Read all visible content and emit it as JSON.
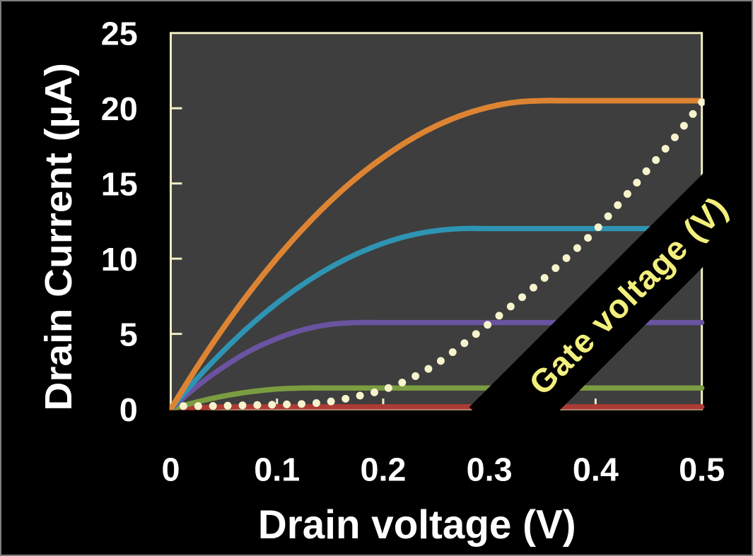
{
  "chart_data": {
    "type": "line",
    "title": "",
    "xlabel": "Drain voltage (V)",
    "ylabel": "Drain Current (µA)",
    "xlim": [
      0,
      0.5
    ],
    "ylim": [
      0,
      25
    ],
    "x_tick_values": [
      0,
      0.1,
      0.2,
      0.3,
      0.4,
      0.5
    ],
    "x_tick_labels": [
      "0",
      "0.1",
      "0.2",
      "0.3",
      "0.4",
      "0.5"
    ],
    "y_tick_values": [
      0,
      5,
      10,
      15,
      20,
      25
    ],
    "y_tick_labels": [
      "0",
      "5",
      "10",
      "15",
      "20",
      "25"
    ],
    "grid": false,
    "legend": "none",
    "colors": {
      "page_bg": "#000000",
      "frame_border": "#7d7d7d",
      "plot_bg": "#3e3e3e",
      "axis": "#f0edc5",
      "tick_labels": "#ffffff",
      "axis_titles": "#ffffff"
    },
    "x": [
      0,
      0.025,
      0.05,
      0.075,
      0.1,
      0.125,
      0.15,
      0.175,
      0.2,
      0.225,
      0.25,
      0.275,
      0.3,
      0.325,
      0.35,
      0.375,
      0.4,
      0.425,
      0.45,
      0.475,
      0.5
    ],
    "series": [
      {
        "name": "output-curve-red",
        "style": "solid",
        "color": "#ae3a36",
        "line_width": 7.5,
        "values": [
          0,
          0.09,
          0.14,
          0.15,
          0.15,
          0.15,
          0.15,
          0.15,
          0.15,
          0.15,
          0.15,
          0.15,
          0.15,
          0.15,
          0.15,
          0.15,
          0.15,
          0.15,
          0.15,
          0.15,
          0.15
        ]
      },
      {
        "name": "output-curve-green",
        "style": "solid",
        "color": "#7b9d41",
        "line_width": 7.5,
        "values": [
          0,
          0.48,
          0.87,
          1.15,
          1.33,
          1.4,
          1.4,
          1.4,
          1.4,
          1.4,
          1.4,
          1.4,
          1.4,
          1.4,
          1.4,
          1.4,
          1.4,
          1.4,
          1.4,
          1.4,
          1.4
        ]
      },
      {
        "name": "output-curve-purple",
        "style": "solid",
        "color": "#6a53a1",
        "line_width": 7.5,
        "values": [
          0,
          1.53,
          2.82,
          3.89,
          4.69,
          5.28,
          5.63,
          5.75,
          5.75,
          5.75,
          5.75,
          5.75,
          5.75,
          5.75,
          5.75,
          5.75,
          5.75,
          5.75,
          5.75,
          5.75,
          5.75
        ]
      },
      {
        "name": "output-curve-teal",
        "style": "solid",
        "color": "#2e94b3",
        "line_width": 7.5,
        "values": [
          0,
          2.05,
          3.9,
          5.57,
          7.04,
          8.32,
          9.41,
          10.31,
          11.02,
          11.54,
          11.86,
          12,
          12,
          12,
          12,
          12,
          12,
          12,
          12,
          12,
          12
        ]
      },
      {
        "name": "output-curve-orange",
        "style": "solid",
        "color": "#dd8433",
        "line_width": 8,
        "values": [
          0,
          2.82,
          5.44,
          7.85,
          10.04,
          12.03,
          13.81,
          15.38,
          16.73,
          17.89,
          18.83,
          19.56,
          20.08,
          20.4,
          20.5,
          20.5,
          20.5,
          20.5,
          20.5,
          20.5,
          20.5
        ]
      },
      {
        "name": "transfer-curve-dotted",
        "style": "dotted",
        "color": "#f6f3cd",
        "dot_radius": 5.5,
        "dot_spacing": 21,
        "values": [
          0.2,
          0.2,
          0.22,
          0.26,
          0.3,
          0.35,
          0.5,
          0.85,
          1.28,
          2,
          3,
          4.3,
          5.7,
          7.1,
          8.6,
          10.2,
          11.9,
          13.9,
          16,
          18.1,
          20.4
        ]
      }
    ],
    "annotation": {
      "label": "Gate voltage (V)",
      "text_color": "#f2ef7d",
      "band_color": "#000000",
      "rotation_deg": -45
    }
  }
}
